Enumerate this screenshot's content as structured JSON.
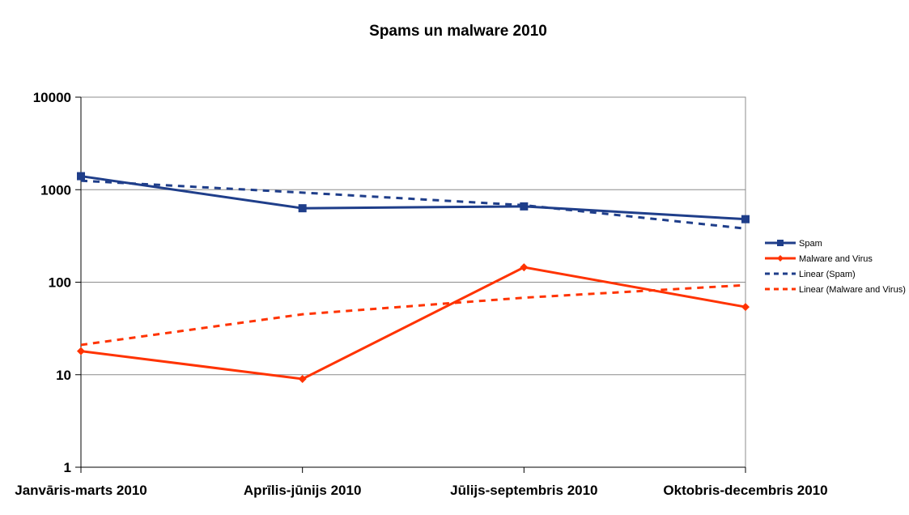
{
  "chart_data": {
    "type": "line",
    "title": "Spams un malware 2010",
    "xlabel": "",
    "ylabel": "",
    "y_scale": "log",
    "ylim": [
      1,
      10000
    ],
    "y_ticks": [
      "1",
      "10",
      "100",
      "1000",
      "10000"
    ],
    "grid": true,
    "legend_position": "right",
    "categories": [
      "Janvāris-marts 2010",
      "Aprīlis-jūnijs 2010",
      "Jūlijs-septembris 2010",
      "Oktobris-decembris 2010"
    ],
    "series": [
      {
        "name": "Spam",
        "values": [
          1400,
          630,
          660,
          480
        ],
        "color": "#1f3e8a",
        "marker": "square",
        "style": "solid"
      },
      {
        "name": "Malware and Virus",
        "values": [
          18,
          9,
          145,
          54
        ],
        "color": "#ff3300",
        "marker": "diamond",
        "style": "solid"
      }
    ],
    "trendlines": [
      {
        "name": "Linear (Spam)",
        "values": [
          1250,
          930,
          680,
          380
        ],
        "color": "#1f3e8a",
        "style": "dashed"
      },
      {
        "name": "Linear (Malware and Virus)",
        "values": [
          21,
          45,
          68,
          93
        ],
        "color": "#ff3300",
        "style": "dashed"
      }
    ]
  }
}
